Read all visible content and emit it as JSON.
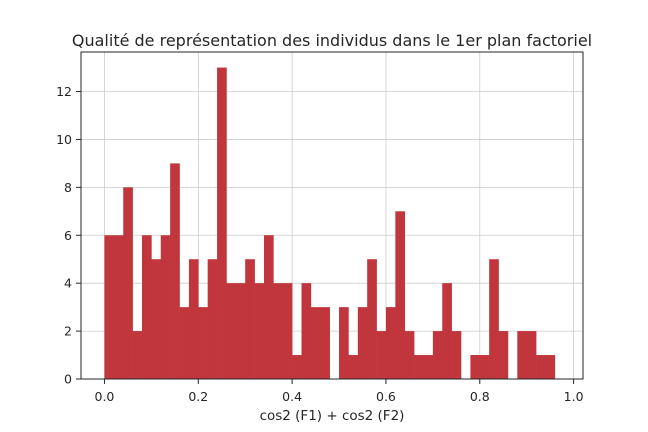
{
  "chart_data": {
    "type": "bar",
    "title": "Qualité de représentation des individus dans le 1er plan factoriel",
    "xlabel": "cos2 (F1) + cos2 (F2)",
    "ylabel": "",
    "xlim": [
      -0.05,
      1.02
    ],
    "ylim": [
      0,
      13.65
    ],
    "grid": true,
    "bar_color": "#c0363c",
    "bin_start": 0.0,
    "bin_width": 0.02,
    "values": [
      6,
      6,
      8,
      2,
      6,
      5,
      6,
      9,
      3,
      5,
      3,
      5,
      13,
      4,
      4,
      5,
      4,
      6,
      4,
      4,
      1,
      4,
      3,
      3,
      0,
      3,
      1,
      3,
      5,
      2,
      3,
      7,
      2,
      1,
      1,
      2,
      4,
      2,
      0,
      1,
      1,
      5,
      2,
      0,
      2,
      2,
      1,
      1
    ],
    "xticks": [
      0.0,
      0.2,
      0.4,
      0.6,
      0.8,
      1.0
    ],
    "xtick_labels": [
      "0.0",
      "0.2",
      "0.4",
      "0.6",
      "0.8",
      "1.0"
    ],
    "yticks": [
      0,
      2,
      4,
      6,
      8,
      10,
      12
    ],
    "ytick_labels": [
      "0",
      "2",
      "4",
      "6",
      "8",
      "10",
      "12"
    ]
  }
}
